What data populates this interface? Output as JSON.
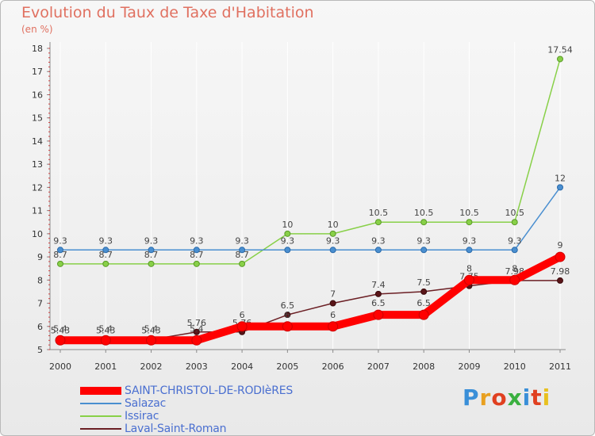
{
  "chart_data": {
    "type": "line",
    "title": "Evolution du Taux de Taxe d'Habitation",
    "subtitle": "(en %)",
    "xlabel": "",
    "ylabel": "",
    "categories": [
      "2000",
      "2001",
      "2002",
      "2003",
      "2004",
      "2005",
      "2006",
      "2007",
      "2008",
      "2009",
      "2010",
      "2011"
    ],
    "ylim": [
      5,
      18
    ],
    "yticks": [
      "5",
      "6",
      "7",
      "8",
      "9",
      "10",
      "11",
      "12",
      "13",
      "14",
      "15",
      "16",
      "17",
      "18"
    ],
    "series": [
      {
        "name": "Laval-Saint-Roman",
        "color": "#6b1f24",
        "values": [
          5.43,
          5.43,
          5.43,
          5.76,
          5.76,
          6.5,
          7,
          7.4,
          7.5,
          7.75,
          7.98,
          7.98
        ],
        "labels": [
          "5.43",
          "5.43",
          "5.43",
          "5.76",
          "5.76",
          "6.5",
          "7",
          "7.4",
          "7.5",
          "7.75",
          "7.98",
          "7.98"
        ]
      },
      {
        "name": "Issirac",
        "color": "#88d048",
        "values": [
          8.7,
          8.7,
          8.7,
          8.7,
          8.7,
          10,
          10,
          10.5,
          10.5,
          10.5,
          10.5,
          17.54
        ],
        "labels": [
          "8.7",
          "8.7",
          "8.7",
          "8.7",
          "8.7",
          "10",
          "10",
          "10.5",
          "10.5",
          "10.5",
          "10.5",
          "17.54"
        ]
      },
      {
        "name": "Salazac",
        "color": "#4a8fd0",
        "values": [
          9.3,
          9.3,
          9.3,
          9.3,
          9.3,
          9.3,
          9.3,
          9.3,
          9.3,
          9.3,
          9.3,
          12
        ],
        "labels": [
          "9.3",
          "9.3",
          "9.3",
          "9.3",
          "9.3",
          "9.3",
          "9.3",
          "9.3",
          "9.3",
          "9.3",
          "9.3",
          "12"
        ]
      },
      {
        "name": "SAINT-CHRISTOL-DE-RODIèRES",
        "color": "#ff0000",
        "values": [
          5.4,
          5.4,
          5.4,
          5.4,
          6,
          6,
          6,
          6.5,
          6.5,
          8,
          8,
          9
        ],
        "labels": [
          "5.4",
          "5.4",
          "5.4",
          "5.4",
          "6",
          "6",
          "6",
          "6.5",
          "6.5",
          "8",
          "8",
          "9"
        ]
      }
    ],
    "legend": [
      "SAINT-CHRISTOL-DE-RODIèRES",
      "Salazac",
      "Issirac",
      "Laval-Saint-Roman"
    ]
  },
  "logo": {
    "text": "Proxiti"
  }
}
